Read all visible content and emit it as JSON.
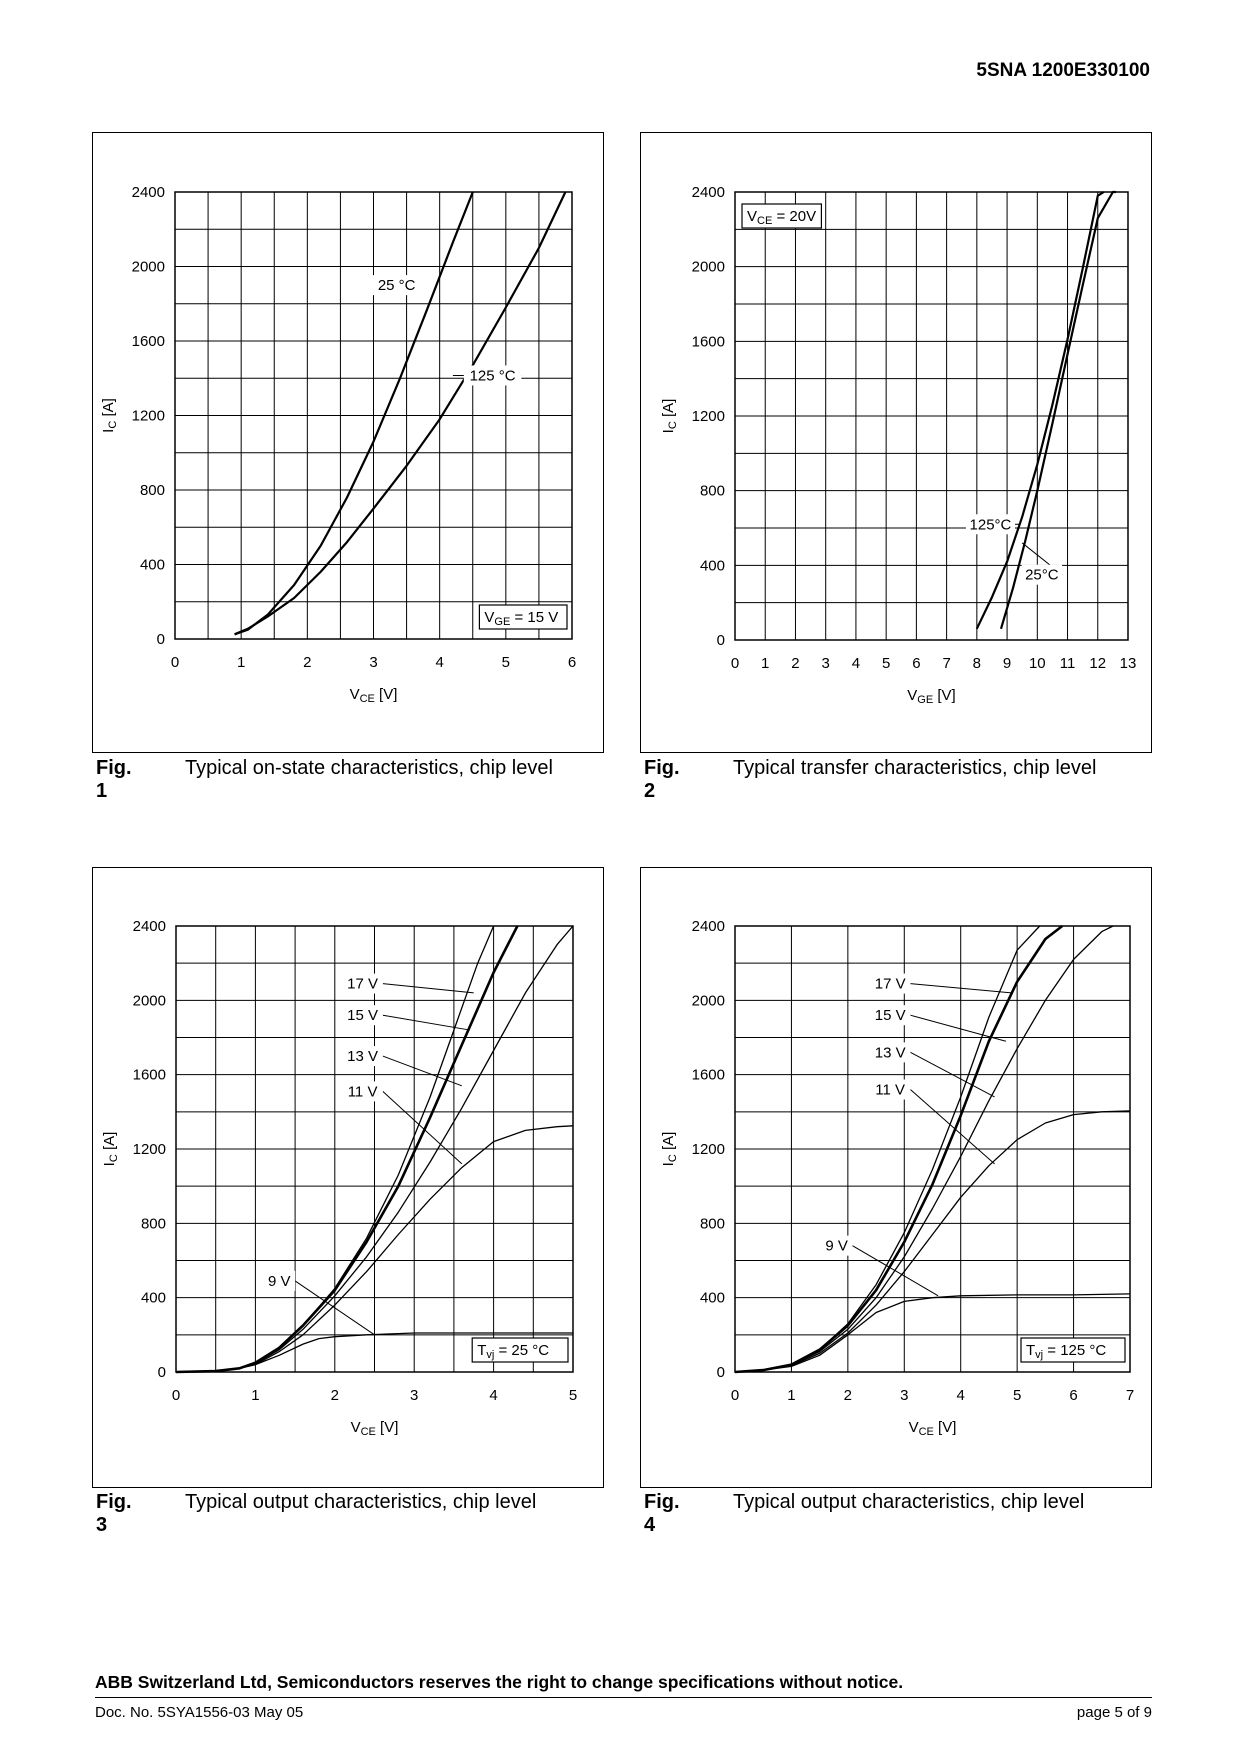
{
  "header": {
    "part_number": "5SNA 1200E330100"
  },
  "figures": [
    {
      "fig_no": "Fig. 1",
      "caption": "Typical on-state characteristics, chip level",
      "chart_data": {
        "type": "line",
        "xlabel": "V_CE [V]",
        "ylabel": "I_C [A]",
        "xlim": [
          0,
          6
        ],
        "ylim": [
          0,
          2400
        ],
        "x_ticks": [
          0,
          1,
          2,
          3,
          4,
          5,
          6
        ],
        "y_ticks": [
          0,
          400,
          800,
          1200,
          1600,
          2000,
          2400
        ],
        "grid": true,
        "series": [
          {
            "name": "25 °C",
            "x": [
              0.9,
              1.1,
              1.4,
              1.8,
              2.2,
              2.6,
              3.0,
              3.4,
              3.8,
              4.2,
              4.5
            ],
            "y": [
              25,
              50,
              130,
              290,
              500,
              760,
              1060,
              1400,
              1760,
              2130,
              2400
            ]
          },
          {
            "name": "125 °C",
            "x": [
              0.9,
              1.1,
              1.4,
              1.8,
              2.2,
              2.6,
              3.0,
              3.5,
              4.0,
              4.5,
              5.0,
              5.5,
              5.9
            ],
            "y": [
              25,
              55,
              120,
              220,
              360,
              520,
              700,
              930,
              1180,
              1470,
              1780,
              2100,
              2400
            ]
          }
        ],
        "labels": [
          {
            "text": "25 °C",
            "x": 3.35,
            "y": 1900
          },
          {
            "text": "125 °C",
            "x": 4.8,
            "y": 1415,
            "leader_to": [
              4.2,
              1415
            ]
          }
        ],
        "box_label": {
          "main": "V",
          "sub": "GE",
          "rest": " = 15 V"
        },
        "box_position": "bottom-right"
      }
    },
    {
      "fig_no": "Fig. 2",
      "caption": "Typical transfer characteristics, chip level",
      "chart_data": {
        "type": "line",
        "xlabel": "V_GE [V]",
        "ylabel": "I_C [A]",
        "xlim": [
          0,
          13
        ],
        "ylim": [
          0,
          2400
        ],
        "x_ticks": [
          0,
          1,
          2,
          3,
          4,
          5,
          6,
          7,
          8,
          9,
          10,
          11,
          12,
          13
        ],
        "y_ticks": [
          0,
          400,
          800,
          1200,
          1600,
          2000,
          2400
        ],
        "grid": true,
        "series": [
          {
            "name": "125°C",
            "x": [
              8.0,
              8.5,
              9.0,
              9.5,
              10.0,
              10.5,
              11.0,
              11.5,
              12.0,
              12.2
            ],
            "y": [
              60,
              230,
              420,
              660,
              940,
              1260,
              1610,
              1990,
              2380,
              2400
            ]
          },
          {
            "name": "25°C",
            "x": [
              8.8,
              9.2,
              9.6,
              10.0,
              10.5,
              11.0,
              11.5,
              12.0,
              12.5,
              12.6
            ],
            "y": [
              60,
              280,
              530,
              800,
              1160,
              1530,
              1900,
              2260,
              2400,
              2400
            ]
          }
        ],
        "labels": [
          {
            "text": "125°C",
            "x": 8.45,
            "y": 620,
            "leader_to": [
              9.4,
              620
            ]
          },
          {
            "text": "25°C",
            "x": 10.15,
            "y": 350,
            "leader_to": [
              9.5,
              520
            ]
          }
        ],
        "box_label": {
          "main": "V",
          "sub": "CE",
          "rest": " = 20V"
        },
        "box_position": "top-left"
      }
    },
    {
      "fig_no": "Fig. 3",
      "caption": "Typical output characteristics, chip level",
      "chart_data": {
        "type": "line",
        "xlabel": "V_CE [V]",
        "ylabel": "I_C [A]",
        "xlim": [
          0,
          5
        ],
        "ylim": [
          0,
          2400
        ],
        "x_ticks": [
          0,
          1,
          2,
          3,
          4,
          5
        ],
        "y_ticks": [
          0,
          400,
          800,
          1200,
          1600,
          2000,
          2400
        ],
        "grid": true,
        "series": [
          {
            "name": "17 V",
            "x": [
              0,
              0.5,
              0.8,
              1.0,
              1.3,
              1.6,
              2.0,
              2.4,
              2.8,
              3.2,
              3.5,
              3.8,
              4.0
            ],
            "y": [
              0,
              5,
              20,
              50,
              130,
              250,
              450,
              720,
              1060,
              1480,
              1840,
              2200,
              2400
            ]
          },
          {
            "name": "15 V",
            "x": [
              0,
              0.5,
              0.8,
              1.0,
              1.3,
              1.6,
              2.0,
              2.4,
              2.8,
              3.2,
              3.6,
              4.0,
              4.3
            ],
            "y": [
              0,
              5,
              20,
              50,
              130,
              250,
              440,
              700,
              1000,
              1370,
              1760,
              2150,
              2400
            ]
          },
          {
            "name": "13 V",
            "x": [
              0,
              0.5,
              0.8,
              1.0,
              1.3,
              1.6,
              2.0,
              2.4,
              2.8,
              3.2,
              3.6,
              4.0,
              4.4,
              4.8,
              5.0
            ],
            "y": [
              0,
              5,
              20,
              45,
              120,
              230,
              410,
              620,
              860,
              1130,
              1420,
              1730,
              2040,
              2300,
              2400
            ]
          },
          {
            "name": "11 V",
            "x": [
              0,
              0.5,
              0.8,
              1.0,
              1.3,
              1.6,
              2.0,
              2.4,
              2.8,
              3.2,
              3.6,
              4.0,
              4.4,
              4.8,
              5.0
            ],
            "y": [
              0,
              5,
              20,
              40,
              110,
              200,
              360,
              540,
              740,
              930,
              1100,
              1240,
              1300,
              1320,
              1325
            ]
          },
          {
            "name": "9 V",
            "x": [
              0,
              0.5,
              0.8,
              1.0,
              1.3,
              1.6,
              1.8,
              2.0,
              2.4,
              3.0,
              4.0,
              5.0
            ],
            "y": [
              0,
              5,
              20,
              40,
              90,
              150,
              180,
              190,
              200,
              210,
              210,
              210
            ]
          }
        ],
        "labels": [
          {
            "text": "17 V",
            "x": 2.35,
            "y": 2090,
            "leader_to": [
              3.75,
              2040
            ]
          },
          {
            "text": "15 V",
            "x": 2.35,
            "y": 1920,
            "leader_to": [
              3.7,
              1840
            ]
          },
          {
            "text": "13 V",
            "x": 2.35,
            "y": 1700,
            "leader_to": [
              3.6,
              1540
            ]
          },
          {
            "text": "11 V",
            "x": 2.35,
            "y": 1510,
            "leader_to": [
              3.6,
              1120
            ]
          },
          {
            "text": "9 V",
            "x": 1.3,
            "y": 490,
            "leader_to": [
              2.5,
              200
            ]
          }
        ],
        "box_label": {
          "main": "T",
          "sub": "vj",
          "rest": " = 25 °C"
        },
        "box_position": "bottom-right"
      }
    },
    {
      "fig_no": "Fig. 4",
      "caption": "Typical output characteristics, chip level",
      "chart_data": {
        "type": "line",
        "xlabel": "V_CE [V]",
        "ylabel": "I_C [A]",
        "xlim": [
          0,
          7
        ],
        "ylim": [
          0,
          2400
        ],
        "x_ticks": [
          0,
          1,
          2,
          3,
          4,
          5,
          6,
          7
        ],
        "y_ticks": [
          0,
          400,
          800,
          1200,
          1600,
          2000,
          2400
        ],
        "grid": true,
        "series": [
          {
            "name": "17 V",
            "x": [
              0,
              0.5,
              1.0,
              1.5,
              2.0,
              2.5,
              3.0,
              3.5,
              4.0,
              4.5,
              5.0,
              5.4
            ],
            "y": [
              0,
              10,
              40,
              120,
              260,
              470,
              750,
              1090,
              1480,
              1910,
              2270,
              2400
            ]
          },
          {
            "name": "15 V",
            "x": [
              0,
              0.5,
              1.0,
              1.5,
              2.0,
              2.5,
              3.0,
              3.5,
              4.0,
              4.5,
              5.0,
              5.5,
              5.8
            ],
            "y": [
              0,
              10,
              40,
              120,
              250,
              440,
              700,
              1010,
              1380,
              1780,
              2100,
              2330,
              2400
            ]
          },
          {
            "name": "13 V",
            "x": [
              0,
              0.5,
              1.0,
              1.5,
              2.0,
              2.5,
              3.0,
              3.5,
              4.0,
              4.5,
              5.0,
              5.5,
              6.0,
              6.5,
              6.7
            ],
            "y": [
              0,
              10,
              40,
              110,
              230,
              400,
              620,
              880,
              1160,
              1460,
              1740,
              2000,
              2220,
              2370,
              2400
            ]
          },
          {
            "name": "11 V",
            "x": [
              0,
              0.5,
              1.0,
              1.5,
              2.0,
              2.5,
              3.0,
              3.5,
              4.0,
              4.5,
              5.0,
              5.5,
              6.0,
              6.5,
              7.0
            ],
            "y": [
              0,
              10,
              35,
              100,
              210,
              360,
              540,
              740,
              940,
              1110,
              1250,
              1340,
              1385,
              1400,
              1405
            ]
          },
          {
            "name": "9 V",
            "x": [
              0,
              0.5,
              1.0,
              1.5,
              2.0,
              2.5,
              3.0,
              3.5,
              4.0,
              5.0,
              6.0,
              7.0
            ],
            "y": [
              0,
              10,
              30,
              90,
              200,
              320,
              380,
              400,
              410,
              415,
              415,
              420
            ]
          }
        ],
        "labels": [
          {
            "text": "17 V",
            "x": 2.75,
            "y": 2090,
            "leader_to": [
              4.9,
              2040
            ]
          },
          {
            "text": "15 V",
            "x": 2.75,
            "y": 1920,
            "leader_to": [
              4.8,
              1780
            ]
          },
          {
            "text": "13 V",
            "x": 2.75,
            "y": 1720,
            "leader_to": [
              4.6,
              1480
            ]
          },
          {
            "text": "11 V",
            "x": 2.75,
            "y": 1520,
            "leader_to": [
              4.6,
              1120
            ]
          },
          {
            "text": "9 V",
            "x": 1.8,
            "y": 680,
            "leader_to": [
              3.6,
              410
            ]
          }
        ],
        "box_label": {
          "main": "T",
          "sub": "vj",
          "rest": " = 125 °C"
        },
        "box_position": "bottom-right"
      }
    }
  ],
  "footer": {
    "note": "ABB Switzerland Ltd, Semiconductors reserves the right to change specifications without notice.",
    "doc_no": "Doc. No. 5SYA1556-03 May 05",
    "page": "page 5 of 9"
  }
}
